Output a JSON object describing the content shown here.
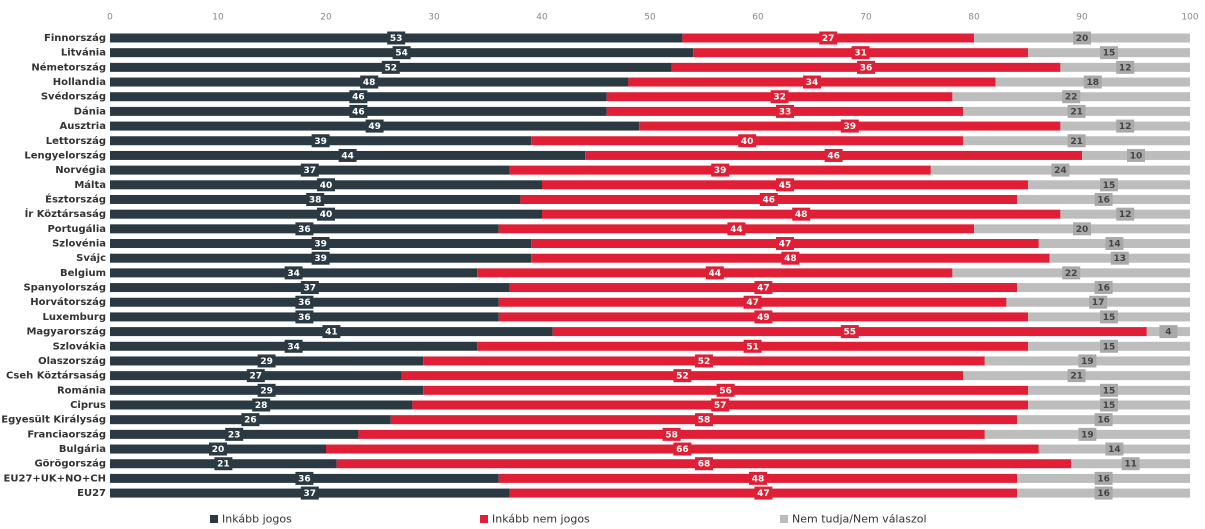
{
  "chart_data": {
    "type": "stacked-bar",
    "orientation": "horizontal",
    "categories": [
      "Finnország",
      "Litvánia",
      "Németország",
      "Hollandia",
      "Svédország",
      "Dánia",
      "Ausztria",
      "Lettország",
      "Lengyelország",
      "Norvégia",
      "Málta",
      "Észtország",
      "Ír Köztársaság",
      "Portugália",
      "Szlovénia",
      "Svájc",
      "Belgium",
      "Spanyolország",
      "Horvátország",
      "Luxemburg",
      "Magyarország",
      "Szlovákia",
      "Olaszország",
      "Cseh Köztársaság",
      "Románia",
      "Ciprus",
      "Egyesült Királyság",
      "Franciaország",
      "Bulgária",
      "Görögország",
      "EU27+UK+NO+CH",
      "EU27"
    ],
    "series": [
      {
        "name": "Inkább jogos",
        "color": "#2b3a42",
        "values": [
          53,
          54,
          52,
          48,
          46,
          46,
          49,
          39,
          44,
          37,
          40,
          38,
          40,
          36,
          39,
          39,
          34,
          37,
          36,
          36,
          41,
          34,
          29,
          27,
          29,
          28,
          26,
          23,
          20,
          21,
          36,
          37
        ]
      },
      {
        "name": "Inkább nem jogos",
        "color": "#e01e35",
        "values": [
          27,
          31,
          36,
          34,
          32,
          33,
          39,
          40,
          46,
          39,
          45,
          46,
          48,
          44,
          47,
          48,
          44,
          47,
          47,
          49,
          55,
          51,
          52,
          52,
          56,
          57,
          58,
          58,
          66,
          68,
          48,
          47
        ]
      },
      {
        "name": "Nem tudja/Nem válaszol",
        "color": "#bdbdbd",
        "values": [
          20,
          15,
          12,
          18,
          22,
          21,
          12,
          21,
          10,
          24,
          15,
          16,
          12,
          20,
          14,
          13,
          22,
          16,
          17,
          15,
          4,
          15,
          19,
          21,
          15,
          15,
          16,
          19,
          14,
          11,
          16,
          16
        ]
      }
    ],
    "xlim": [
      0,
      100
    ],
    "xticks": [
      0,
      10,
      20,
      30,
      40,
      50,
      60,
      70,
      80,
      90,
      100
    ],
    "legend": "bottom",
    "grid": false
  }
}
